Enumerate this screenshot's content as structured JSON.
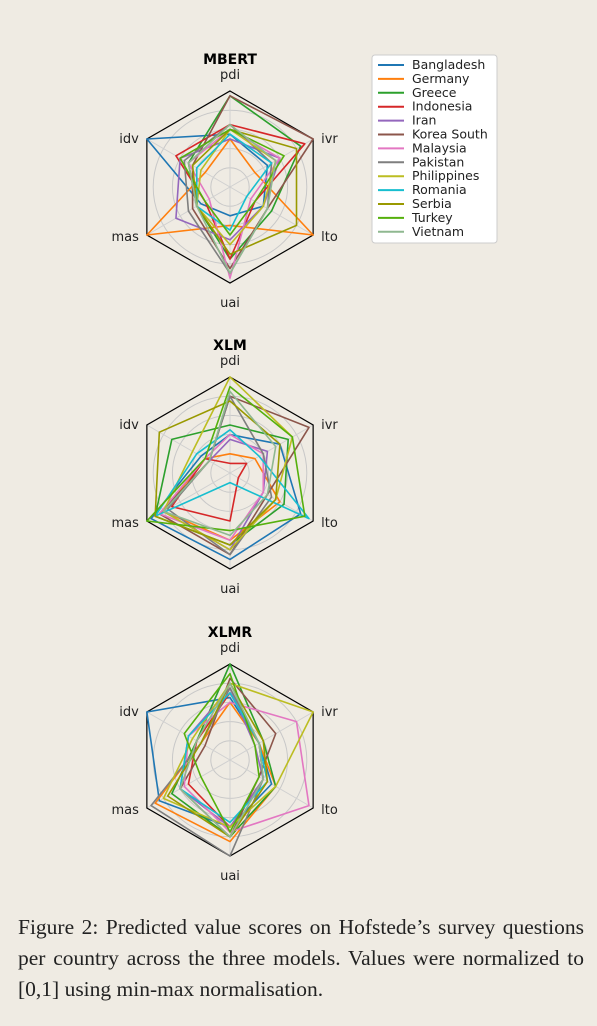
{
  "caption": "Figure 2: Predicted value scores on Hofstede’s survey questions per country across the three models. Values were normalized to [0,1] using min-max normalisation.",
  "chart_data": {
    "type": "radar",
    "axes": [
      "pdi",
      "ivr",
      "lto",
      "uai",
      "mas",
      "idv"
    ],
    "range": [
      0,
      1
    ],
    "countries": [
      {
        "name": "Bangladesh",
        "color": "#1f77b4"
      },
      {
        "name": "Germany",
        "color": "#ff7f0e"
      },
      {
        "name": "Greece",
        "color": "#2ca02c"
      },
      {
        "name": "Indonesia",
        "color": "#d62728"
      },
      {
        "name": "Iran",
        "color": "#9467bd"
      },
      {
        "name": "Korea South",
        "color": "#8c564b"
      },
      {
        "name": "Malaysia",
        "color": "#e377c2"
      },
      {
        "name": "Pakistan",
        "color": "#7f7f7f"
      },
      {
        "name": "Philippines",
        "color": "#bcbd22"
      },
      {
        "name": "Romania",
        "color": "#17becf"
      },
      {
        "name": "Serbia",
        "color": "#999900"
      },
      {
        "name": "Turkey",
        "color": "#55b00c"
      },
      {
        "name": "Vietnam",
        "color": "#8fb890"
      }
    ],
    "charts": [
      {
        "title": "MBERT",
        "series": [
          [
            0.55,
            0.45,
            0.4,
            0.3,
            0.35,
            1.0
          ],
          [
            0.5,
            0.3,
            1.0,
            0.4,
            1.0,
            0.3
          ],
          [
            0.95,
            0.85,
            0.5,
            0.75,
            0.4,
            0.5
          ],
          [
            0.65,
            0.9,
            0.3,
            0.75,
            0.3,
            0.65
          ],
          [
            0.5,
            0.6,
            0.4,
            0.55,
            0.65,
            0.6
          ],
          [
            0.95,
            1.0,
            0.45,
            0.85,
            0.45,
            0.45
          ],
          [
            0.6,
            0.6,
            0.25,
            0.95,
            0.25,
            0.5
          ],
          [
            0.65,
            0.5,
            0.45,
            0.9,
            0.5,
            0.55
          ],
          [
            0.6,
            0.55,
            0.4,
            0.6,
            0.4,
            0.35
          ],
          [
            0.55,
            0.5,
            0.2,
            0.45,
            0.4,
            0.4
          ],
          [
            0.6,
            0.8,
            0.8,
            0.7,
            0.4,
            0.45
          ],
          [
            0.6,
            0.65,
            0.3,
            0.5,
            0.3,
            0.6
          ],
          [
            0.65,
            0.55,
            0.45,
            0.9,
            0.4,
            0.5
          ]
        ]
      },
      {
        "title": "XLM",
        "series": [
          [
            0.4,
            0.6,
            0.85,
            0.9,
            0.95,
            0.35
          ],
          [
            0.2,
            0.3,
            0.6,
            0.7,
            0.8,
            0.3
          ],
          [
            0.5,
            0.7,
            0.65,
            0.75,
            0.9,
            0.7
          ],
          [
            0.1,
            0.2,
            0.1,
            0.5,
            0.7,
            0.3
          ],
          [
            0.35,
            0.45,
            0.4,
            0.8,
            0.8,
            0.25
          ],
          [
            0.8,
            0.95,
            0.45,
            0.85,
            0.85,
            0.25
          ],
          [
            0.4,
            0.4,
            0.4,
            0.7,
            0.85,
            0.3
          ],
          [
            0.8,
            0.4,
            0.5,
            0.85,
            0.75,
            0.25
          ],
          [
            1.0,
            0.75,
            0.55,
            0.8,
            0.8,
            0.45
          ],
          [
            0.45,
            0.35,
            0.95,
            0.1,
            0.9,
            0.4
          ],
          [
            0.75,
            0.6,
            0.55,
            0.75,
            0.9,
            0.85
          ],
          [
            0.9,
            0.75,
            0.9,
            0.6,
            1.0,
            0.3
          ],
          [
            0.85,
            0.55,
            0.45,
            0.65,
            0.8,
            0.25
          ]
        ]
      },
      {
        "title": "XLMR",
        "series": [
          [
            0.65,
            0.35,
            0.5,
            0.7,
            0.85,
            1.0
          ],
          [
            0.6,
            0.35,
            0.55,
            0.85,
            0.9,
            0.35
          ],
          [
            1.0,
            0.4,
            0.55,
            0.8,
            0.7,
            0.4
          ],
          [
            0.7,
            0.35,
            0.4,
            0.7,
            0.5,
            0.4
          ],
          [
            0.75,
            0.3,
            0.4,
            0.7,
            0.6,
            0.5
          ],
          [
            0.85,
            0.55,
            0.35,
            0.8,
            0.6,
            0.3
          ],
          [
            0.6,
            0.8,
            0.95,
            0.75,
            0.55,
            0.5
          ],
          [
            0.75,
            0.35,
            0.4,
            1.0,
            0.95,
            0.35
          ],
          [
            0.8,
            1.0,
            0.55,
            0.7,
            0.8,
            0.45
          ],
          [
            0.7,
            0.35,
            0.45,
            0.65,
            0.6,
            0.5
          ],
          [
            0.8,
            0.4,
            0.45,
            0.8,
            0.75,
            0.35
          ],
          [
            0.9,
            0.3,
            0.35,
            0.75,
            0.35,
            0.55
          ],
          [
            0.8,
            0.35,
            0.4,
            0.8,
            0.6,
            0.4
          ]
        ]
      }
    ]
  }
}
